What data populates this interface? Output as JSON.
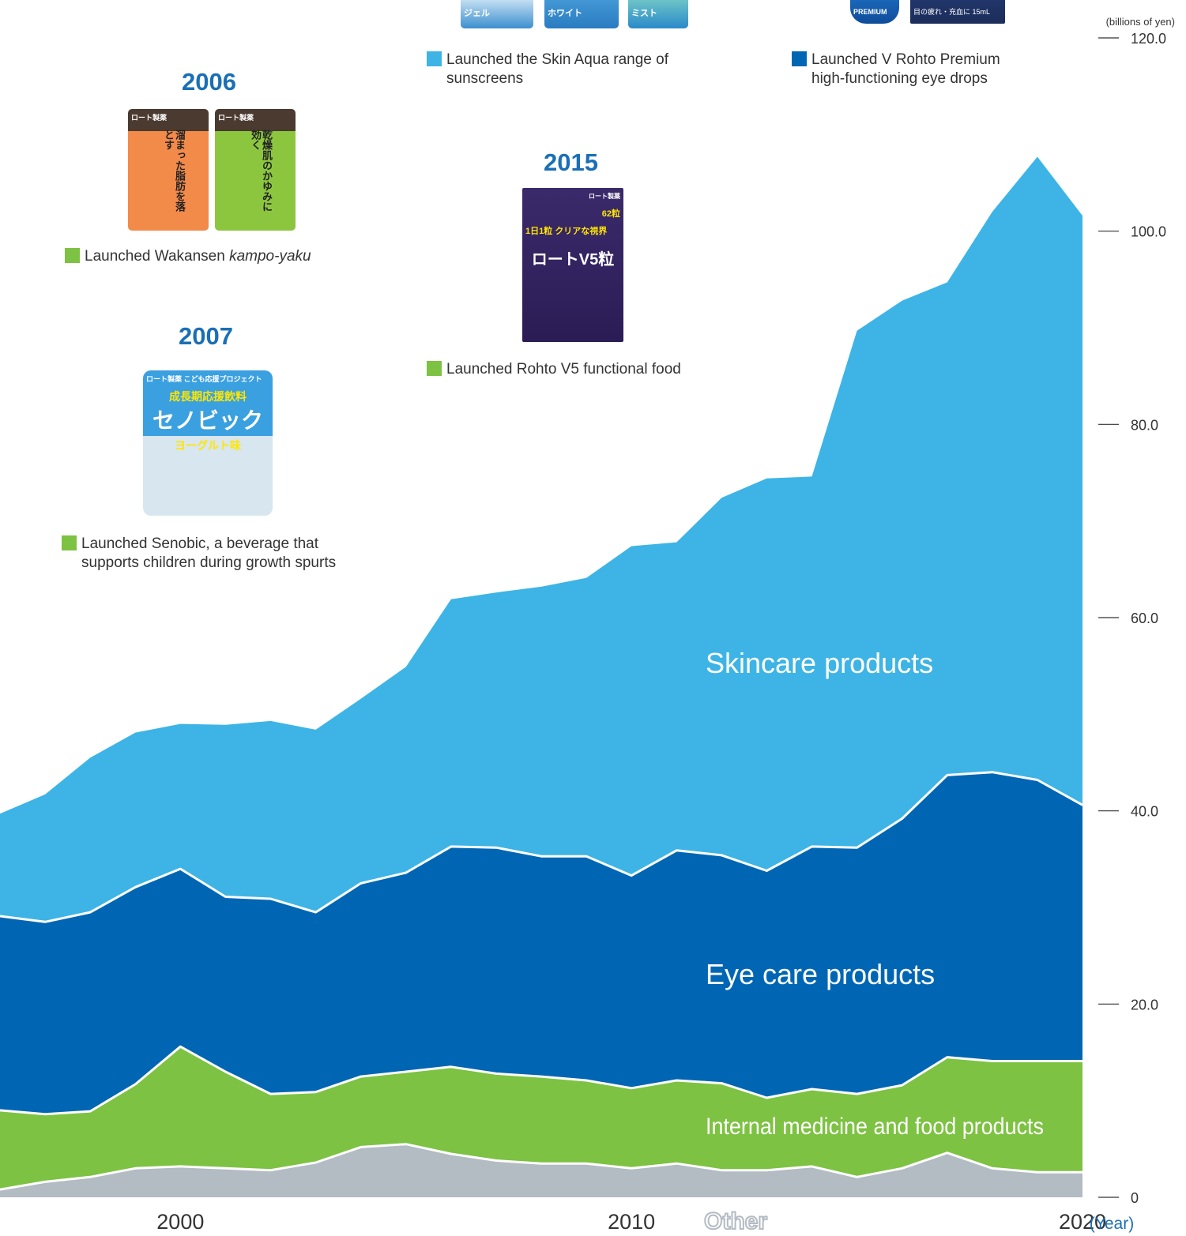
{
  "chart_data": {
    "type": "area",
    "stacked": true,
    "unit_label": "(billions of yen)",
    "xlabel": "(Year)",
    "x_ticks": [
      "2000",
      "2010",
      "2020"
    ],
    "y_ticks": [
      "0",
      "20.0",
      "40.0",
      "60.0",
      "80.0",
      "100.0",
      "120.0"
    ],
    "ylim": [
      0,
      120
    ],
    "x": [
      1996,
      1997,
      1998,
      1999,
      2000,
      2001,
      2002,
      2003,
      2004,
      2005,
      2006,
      2007,
      2008,
      2009,
      2010,
      2011,
      2012,
      2013,
      2014,
      2015,
      2016,
      2017,
      2018,
      2019,
      2020
    ],
    "series": [
      {
        "name": "Other",
        "color": "#b3bbc3",
        "values": [
          0.8,
          1.6,
          2.1,
          3.0,
          3.2,
          3.0,
          2.8,
          3.6,
          5.2,
          5.5,
          4.5,
          3.8,
          3.5,
          3.5,
          3.0,
          3.5,
          2.8,
          2.8,
          3.2,
          2.1,
          3.0,
          4.6,
          3.0,
          2.6,
          2.6
        ]
      },
      {
        "name": "Internal medicine and food products",
        "color": "#7dc242",
        "values": [
          8.2,
          7.0,
          6.8,
          8.7,
          12.4,
          10.0,
          7.9,
          7.3,
          7.3,
          7.5,
          9.0,
          9.0,
          9.0,
          8.6,
          8.3,
          8.6,
          9.0,
          7.5,
          8.0,
          8.6,
          8.6,
          9.9,
          11.1,
          11.5,
          11.5
        ]
      },
      {
        "name": "Eye care products",
        "color": "#0066b3",
        "values": [
          20.1,
          19.9,
          20.6,
          20.4,
          18.4,
          18.1,
          20.2,
          18.6,
          20.0,
          20.6,
          22.8,
          23.4,
          22.8,
          23.2,
          22.0,
          23.8,
          23.6,
          23.5,
          25.1,
          25.5,
          27.6,
          29.2,
          29.9,
          29.1,
          26.5
        ]
      },
      {
        "name": "Skincare products",
        "color": "#3db4e5",
        "values": [
          10.6,
          13.2,
          16.0,
          16.0,
          15.0,
          17.8,
          18.4,
          18.9,
          19.1,
          21.3,
          25.6,
          26.4,
          27.9,
          28.8,
          34.1,
          31.9,
          37.0,
          40.6,
          38.3,
          53.5,
          53.6,
          51.0,
          58.0,
          64.5,
          61.0
        ]
      }
    ]
  },
  "milestones": [
    {
      "year": "2006",
      "text_a": "Launched Wakansen ",
      "text_em": "kampo-yaku",
      "color": "#7dc242"
    },
    {
      "year": "2007",
      "line1": "Launched Senobic, a beverage that",
      "line2": "supports children during growth spurts",
      "color": "#7dc242"
    },
    {
      "year": "",
      "line1": "Launched the Skin Aqua range of",
      "line2": "sunscreens",
      "color": "#3db4e5"
    },
    {
      "year": "2015",
      "line1": "Launched Rohto V5 functional food",
      "color": "#7dc242"
    },
    {
      "year": "",
      "line1": "Launched V Rohto Premium",
      "line2": "high-functioning eye drops",
      "color": "#0066b3"
    }
  ],
  "products": {
    "wakansen_a": {
      "brand": "ロート製薬",
      "title": "溜まった脂肪を落とす",
      "color": "#f28a4a"
    },
    "wakansen_b": {
      "brand": "ロート製薬",
      "title": "乾燥肌のかゆみに効く",
      "color": "#8cc63f"
    },
    "senobic": {
      "brand": "ロート製薬 こども応援プロジェクト",
      "sub": "成長期応援飲料",
      "name": "セノビック",
      "flavor": "ヨーグルト味"
    },
    "v5": {
      "brand": "ロート製薬",
      "top": "1日1粒 クリアな視界",
      "name": "ロートV5粒",
      "count": "62粒"
    },
    "skinaqua_a": {
      "text": "ジェル"
    },
    "skinaqua_b": {
      "text": "ホワイト"
    },
    "skinaqua_c": {
      "text": "ミスト"
    },
    "vrohto_a": {
      "text": "PREMIUM"
    },
    "vrohto_b": {
      "text": "目の疲れ・充血に 15mL"
    }
  }
}
